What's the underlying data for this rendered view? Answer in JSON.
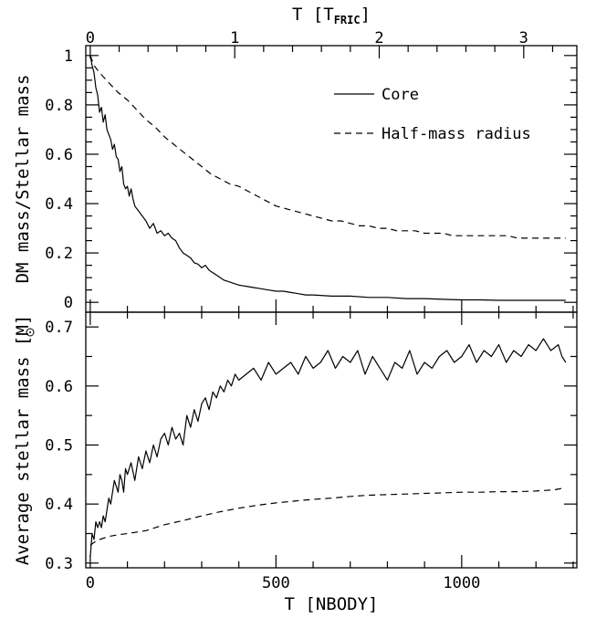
{
  "chart_data": [
    {
      "type": "line",
      "panel": "top",
      "ylabel": "DM mass/Stellar mass",
      "xlabel_top": "T [T",
      "xlabel_top_subscript": "FRIC",
      "xlabel_top_suffix": "]",
      "x_top_ticks": [
        0,
        1,
        2,
        3
      ],
      "x_top_per_nbody_unit": 389,
      "xlim": [
        -12,
        1310
      ],
      "ylim": [
        -0.04,
        1.04
      ],
      "y_ticks": [
        0,
        0.2,
        0.4,
        0.6,
        0.8,
        1
      ],
      "y_tick_labels": [
        "0",
        "0.2",
        "0.4",
        "0.6",
        "0.8",
        "1"
      ],
      "legend_position": "top-right",
      "series": [
        {
          "name": "Core",
          "style": "solid",
          "x": [
            0,
            5,
            10,
            15,
            20,
            25,
            30,
            35,
            40,
            45,
            50,
            55,
            60,
            65,
            70,
            75,
            80,
            85,
            90,
            95,
            100,
            105,
            110,
            115,
            120,
            130,
            140,
            150,
            160,
            170,
            180,
            190,
            200,
            210,
            220,
            230,
            240,
            250,
            260,
            270,
            280,
            290,
            300,
            310,
            320,
            330,
            340,
            350,
            360,
            370,
            380,
            390,
            400,
            420,
            440,
            460,
            480,
            500,
            520,
            540,
            560,
            580,
            600,
            650,
            700,
            750,
            800,
            850,
            900,
            950,
            1000,
            1050,
            1100,
            1150,
            1200,
            1250,
            1280
          ],
          "y": [
            1.0,
            0.96,
            0.93,
            0.87,
            0.84,
            0.77,
            0.79,
            0.73,
            0.76,
            0.7,
            0.68,
            0.66,
            0.62,
            0.64,
            0.59,
            0.58,
            0.53,
            0.55,
            0.48,
            0.46,
            0.47,
            0.43,
            0.46,
            0.42,
            0.39,
            0.37,
            0.35,
            0.33,
            0.3,
            0.32,
            0.28,
            0.29,
            0.27,
            0.28,
            0.26,
            0.25,
            0.22,
            0.2,
            0.19,
            0.18,
            0.16,
            0.155,
            0.14,
            0.15,
            0.13,
            0.12,
            0.11,
            0.1,
            0.09,
            0.085,
            0.08,
            0.075,
            0.07,
            0.065,
            0.06,
            0.055,
            0.05,
            0.045,
            0.045,
            0.04,
            0.035,
            0.03,
            0.03,
            0.025,
            0.025,
            0.02,
            0.02,
            0.015,
            0.015,
            0.012,
            0.01,
            0.01,
            0.008,
            0.008,
            0.008,
            0.008,
            0.008
          ]
        },
        {
          "name": "Half-mass radius",
          "style": "dashed",
          "x": [
            0,
            10,
            25,
            50,
            75,
            100,
            125,
            150,
            175,
            200,
            225,
            250,
            275,
            300,
            325,
            350,
            375,
            400,
            425,
            450,
            475,
            500,
            525,
            550,
            575,
            600,
            625,
            650,
            675,
            700,
            725,
            750,
            775,
            800,
            825,
            850,
            875,
            900,
            925,
            950,
            975,
            1000,
            1025,
            1050,
            1075,
            1100,
            1125,
            1150,
            1175,
            1200,
            1225,
            1250,
            1280
          ],
          "y": [
            1.0,
            0.96,
            0.93,
            0.89,
            0.85,
            0.82,
            0.78,
            0.74,
            0.71,
            0.67,
            0.64,
            0.61,
            0.58,
            0.55,
            0.52,
            0.5,
            0.48,
            0.47,
            0.45,
            0.43,
            0.41,
            0.39,
            0.38,
            0.37,
            0.36,
            0.35,
            0.34,
            0.33,
            0.33,
            0.32,
            0.31,
            0.31,
            0.3,
            0.3,
            0.29,
            0.29,
            0.29,
            0.28,
            0.28,
            0.28,
            0.27,
            0.27,
            0.27,
            0.27,
            0.27,
            0.27,
            0.27,
            0.26,
            0.26,
            0.26,
            0.26,
            0.26,
            0.26
          ]
        }
      ]
    },
    {
      "type": "line",
      "panel": "bottom",
      "xlabel": "T [NBODY]",
      "ylabel": "Average stellar mass [M",
      "ylabel_suffix": "]",
      "xlim": [
        -12,
        1310
      ],
      "ylim": [
        0.292,
        0.725
      ],
      "x_ticks": [
        0,
        500,
        1000
      ],
      "x_tick_labels": [
        "0",
        "500",
        "1000"
      ],
      "y_ticks": [
        0.3,
        0.4,
        0.5,
        0.6,
        0.7
      ],
      "y_tick_labels": [
        "0.3",
        "0.4",
        "0.5",
        "0.6",
        "0.7"
      ],
      "series": [
        {
          "name": "Core",
          "style": "solid",
          "x": [
            0,
            5,
            10,
            15,
            20,
            25,
            30,
            35,
            40,
            45,
            50,
            55,
            60,
            65,
            70,
            75,
            80,
            85,
            90,
            95,
            100,
            110,
            120,
            130,
            140,
            150,
            160,
            170,
            180,
            190,
            200,
            210,
            220,
            230,
            240,
            250,
            260,
            270,
            280,
            290,
            300,
            310,
            320,
            330,
            340,
            350,
            360,
            370,
            380,
            390,
            400,
            420,
            440,
            460,
            480,
            500,
            520,
            540,
            560,
            580,
            600,
            620,
            640,
            660,
            680,
            700,
            720,
            740,
            760,
            780,
            800,
            820,
            840,
            860,
            880,
            900,
            920,
            940,
            960,
            980,
            1000,
            1020,
            1040,
            1060,
            1080,
            1100,
            1120,
            1140,
            1160,
            1180,
            1200,
            1220,
            1240,
            1260,
            1270,
            1280
          ],
          "y": [
            0.31,
            0.35,
            0.34,
            0.37,
            0.36,
            0.37,
            0.36,
            0.38,
            0.37,
            0.39,
            0.41,
            0.4,
            0.42,
            0.44,
            0.43,
            0.42,
            0.45,
            0.44,
            0.42,
            0.46,
            0.45,
            0.47,
            0.44,
            0.48,
            0.46,
            0.49,
            0.47,
            0.5,
            0.48,
            0.51,
            0.52,
            0.5,
            0.53,
            0.51,
            0.52,
            0.5,
            0.55,
            0.53,
            0.56,
            0.54,
            0.57,
            0.58,
            0.56,
            0.59,
            0.58,
            0.6,
            0.59,
            0.61,
            0.6,
            0.62,
            0.61,
            0.62,
            0.63,
            0.61,
            0.64,
            0.62,
            0.63,
            0.64,
            0.62,
            0.65,
            0.63,
            0.64,
            0.66,
            0.63,
            0.65,
            0.64,
            0.66,
            0.62,
            0.65,
            0.63,
            0.61,
            0.64,
            0.63,
            0.66,
            0.62,
            0.64,
            0.63,
            0.65,
            0.66,
            0.64,
            0.65,
            0.67,
            0.64,
            0.66,
            0.65,
            0.67,
            0.64,
            0.66,
            0.65,
            0.67,
            0.66,
            0.68,
            0.66,
            0.67,
            0.65,
            0.64
          ]
        },
        {
          "name": "Half-mass radius",
          "style": "dashed",
          "x": [
            0,
            10,
            25,
            50,
            75,
            100,
            150,
            200,
            250,
            300,
            350,
            400,
            450,
            500,
            550,
            600,
            650,
            700,
            750,
            800,
            850,
            900,
            950,
            1000,
            1050,
            1100,
            1150,
            1200,
            1250,
            1280
          ],
          "y": [
            0.33,
            0.335,
            0.34,
            0.345,
            0.348,
            0.35,
            0.355,
            0.365,
            0.372,
            0.38,
            0.387,
            0.393,
            0.398,
            0.402,
            0.405,
            0.408,
            0.41,
            0.413,
            0.415,
            0.416,
            0.417,
            0.418,
            0.419,
            0.42,
            0.42,
            0.421,
            0.421,
            0.422,
            0.424,
            0.428
          ]
        }
      ]
    }
  ]
}
